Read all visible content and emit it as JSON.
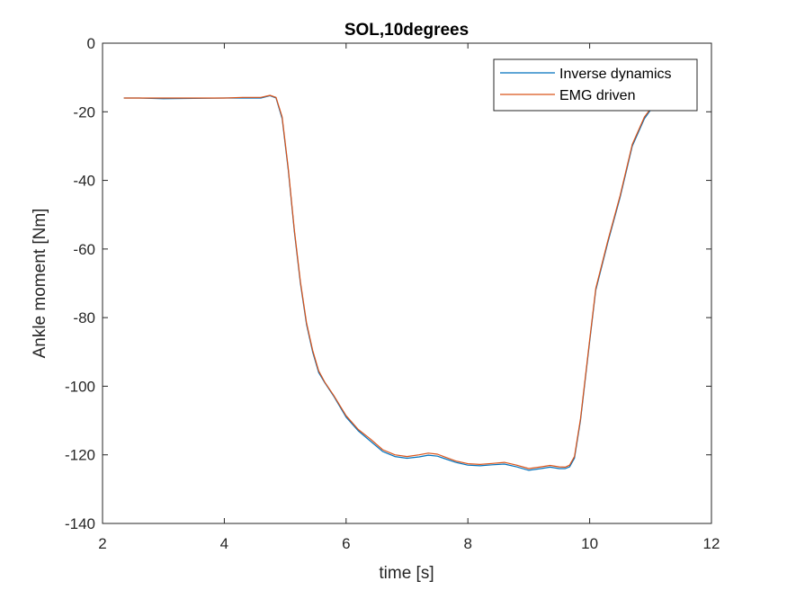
{
  "chart_data": {
    "type": "line",
    "title": "SOL,10degrees",
    "xlabel": "time  [s]",
    "ylabel": "Ankle moment [Nm]",
    "xlim": [
      2,
      12
    ],
    "ylim": [
      -140,
      0
    ],
    "xticks": [
      2,
      4,
      6,
      8,
      10,
      12
    ],
    "yticks": [
      0,
      -20,
      -40,
      -60,
      -80,
      -100,
      -120,
      -140
    ],
    "grid": false,
    "legend_position": "top-right",
    "series": [
      {
        "name": "Inverse dynamics",
        "color": "#0072BD",
        "x": [
          2.35,
          2.6,
          3.0,
          3.5,
          4.0,
          4.3,
          4.6,
          4.75,
          4.85,
          4.95,
          5.05,
          5.15,
          5.25,
          5.35,
          5.45,
          5.55,
          5.65,
          5.8,
          6.0,
          6.2,
          6.4,
          6.6,
          6.8,
          7.0,
          7.2,
          7.35,
          7.5,
          7.6,
          7.8,
          8.0,
          8.2,
          8.4,
          8.6,
          8.8,
          9.0,
          9.2,
          9.35,
          9.5,
          9.6,
          9.67,
          9.75,
          9.85,
          10.0,
          10.1,
          10.3,
          10.5,
          10.7,
          10.9,
          11.1
        ],
        "values": [
          -16,
          -16,
          -16.2,
          -16.1,
          -16,
          -16,
          -16,
          -15.3,
          -16,
          -22,
          -37,
          -55,
          -70,
          -82,
          -90,
          -96,
          -99,
          -103,
          -109,
          -113,
          -116,
          -119,
          -120.5,
          -121,
          -120.6,
          -120.1,
          -120.4,
          -121,
          -122.2,
          -123,
          -123.2,
          -122.9,
          -122.7,
          -123.5,
          -124.5,
          -124,
          -123.6,
          -124,
          -124,
          -123.5,
          -121,
          -110,
          -87,
          -72,
          -58,
          -45,
          -30,
          -22,
          -17
        ]
      },
      {
        "name": "EMG driven",
        "color": "#D95319",
        "x": [
          2.35,
          2.6,
          3.0,
          3.5,
          4.0,
          4.3,
          4.6,
          4.75,
          4.85,
          4.95,
          5.05,
          5.15,
          5.25,
          5.35,
          5.45,
          5.55,
          5.65,
          5.8,
          6.0,
          6.2,
          6.4,
          6.6,
          6.8,
          7.0,
          7.2,
          7.35,
          7.5,
          7.6,
          7.8,
          8.0,
          8.2,
          8.4,
          8.6,
          8.8,
          9.0,
          9.2,
          9.35,
          9.5,
          9.6,
          9.67,
          9.75,
          9.85,
          10.0,
          10.1,
          10.3,
          10.5,
          10.7,
          10.9,
          11.1
        ],
        "values": [
          -16,
          -16,
          -16,
          -16,
          -16,
          -15.8,
          -15.8,
          -15.2,
          -15.8,
          -21.5,
          -36.5,
          -54.5,
          -69.5,
          -81.5,
          -89.5,
          -95.5,
          -98.8,
          -102.8,
          -108.6,
          -112.6,
          -115.4,
          -118.5,
          -120,
          -120.5,
          -120,
          -119.5,
          -119.8,
          -120.5,
          -121.8,
          -122.6,
          -122.8,
          -122.5,
          -122.2,
          -123,
          -124,
          -123.5,
          -123.1,
          -123.5,
          -123.6,
          -123,
          -120.5,
          -109.5,
          -86.5,
          -71.5,
          -57.5,
          -44.5,
          -29.5,
          -21.5,
          -16.8
        ]
      }
    ]
  }
}
